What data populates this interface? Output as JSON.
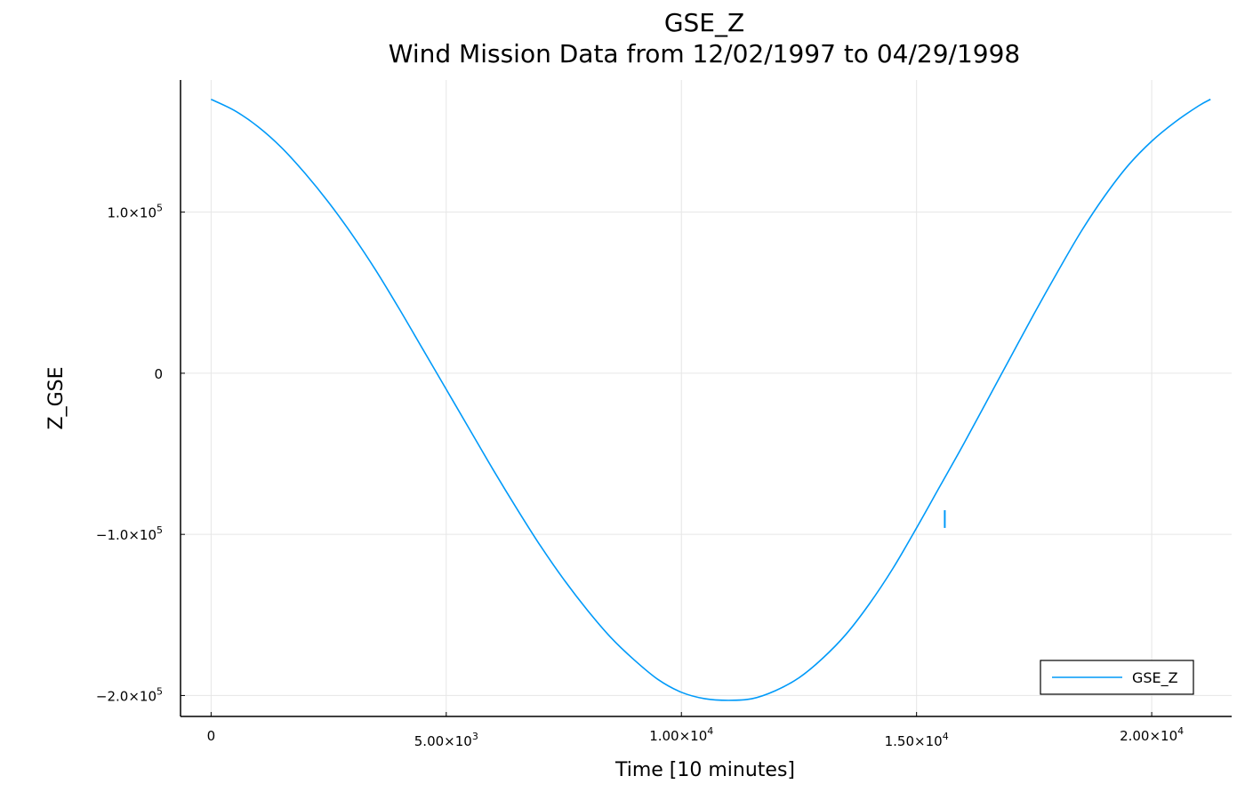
{
  "chart_data": {
    "type": "line",
    "title": "GSE_Z",
    "subtitle": "Wind Mission Data from 12/02/1997 to 04/29/1998",
    "xlabel": "Time [10 minutes]",
    "ylabel": "Z_GSE",
    "xlim": [
      -650,
      21700
    ],
    "ylim": [
      -213000,
      182000
    ],
    "grid": true,
    "legend_position": "bottom-right",
    "x_ticks": [
      {
        "value": 0,
        "mantissa": "0",
        "exponent": ""
      },
      {
        "value": 5000,
        "mantissa": "5.00×10",
        "exponent": "3"
      },
      {
        "value": 10000,
        "mantissa": "1.00×10",
        "exponent": "4"
      },
      {
        "value": 15000,
        "mantissa": "1.50×10",
        "exponent": "4"
      },
      {
        "value": 20000,
        "mantissa": "2.00×10",
        "exponent": "4"
      }
    ],
    "y_ticks": [
      {
        "value": 100000,
        "mantissa": "1.0×10",
        "exponent": "5"
      },
      {
        "value": 0,
        "mantissa": "0",
        "exponent": ""
      },
      {
        "value": -100000,
        "mantissa": "−1.0×10",
        "exponent": "5"
      },
      {
        "value": -200000,
        "mantissa": "−2.0×10",
        "exponent": "5"
      }
    ],
    "series": [
      {
        "name": "GSE_Z",
        "color": "#009AF9",
        "x": [
          0,
          500,
          1000,
          1500,
          2000,
          2500,
          3000,
          3500,
          4000,
          4500,
          5000,
          5500,
          6000,
          6500,
          7000,
          7500,
          8000,
          8500,
          9000,
          9500,
          10000,
          10500,
          11000,
          11500,
          12000,
          12500,
          13000,
          13500,
          14000,
          14500,
          15000,
          15500,
          16000,
          16500,
          17000,
          17500,
          18000,
          18500,
          19000,
          19500,
          20000,
          20500,
          21000,
          21250
        ],
        "y": [
          170000,
          163000,
          153000,
          140000,
          124000,
          106000,
          86000,
          64000,
          40000,
          15000,
          -10000,
          -35000,
          -60000,
          -84000,
          -107000,
          -128000,
          -147000,
          -164000,
          -178000,
          -190000,
          -198000,
          -202000,
          -203000,
          -202000,
          -197000,
          -189000,
          -177000,
          -162000,
          -143000,
          -121000,
          -96000,
          -70000,
          -44000,
          -17000,
          10000,
          37000,
          63000,
          88000,
          110000,
          129000,
          144000,
          156000,
          166000,
          170000
        ]
      },
      {
        "name": "",
        "color": "#009AF9",
        "x": [
          15600,
          15600
        ],
        "y": [
          -85000,
          -96000
        ]
      }
    ]
  }
}
